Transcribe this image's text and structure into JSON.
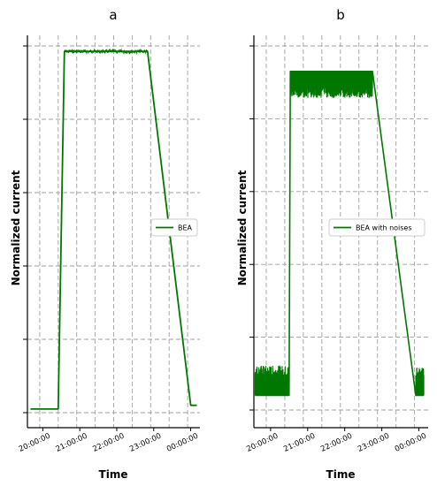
{
  "chart_data": [
    {
      "type": "line",
      "panel": "a",
      "title": "a",
      "xlabel": "Time",
      "ylabel": "Normalized current",
      "x_ticks": [
        "20:00:00",
        "21:00:00",
        "22:00:00",
        "23:00:00",
        "00:00:00"
      ],
      "y_tick_count": 6,
      "ylim": [
        0,
        1
      ],
      "grid": true,
      "legend": "center-right",
      "noisy": false,
      "series": [
        {
          "name": "BEA",
          "color": "#007800",
          "points": [
            {
              "x": "19:40:00",
              "y": 0.01
            },
            {
              "x": "20:25:00",
              "y": 0.01
            },
            {
              "x": "20:35:00",
              "y": 0.985
            },
            {
              "x": "21:30:00",
              "y": 0.985
            },
            {
              "x": "22:50:00",
              "y": 0.985
            },
            {
              "x": "00:00:00",
              "y": 0.02
            },
            {
              "x": "00:10:00",
              "y": 0.02
            }
          ]
        }
      ]
    },
    {
      "type": "line",
      "panel": "b",
      "title": "b",
      "xlabel": "Time",
      "ylabel": "Normalized current",
      "x_ticks": [
        "20:00:00",
        "21:00:00",
        "22:00:00",
        "23:00:00",
        "00:00:00"
      ],
      "y_tick_count": 6,
      "ylim": [
        0,
        1
      ],
      "grid": true,
      "legend": "center-right",
      "noisy": true,
      "series": [
        {
          "name": "BEA with noises",
          "color": "#007800",
          "points": [
            {
              "x": "19:35:00",
              "y": 0.04
            },
            {
              "x": "20:30:00",
              "y": 0.04
            },
            {
              "x": "20:32:00",
              "y": 0.93
            },
            {
              "x": "22:45:00",
              "y": 0.93
            },
            {
              "x": "23:55:00",
              "y": 0.04
            },
            {
              "x": "00:08:00",
              "y": 0.04
            }
          ]
        }
      ]
    }
  ]
}
